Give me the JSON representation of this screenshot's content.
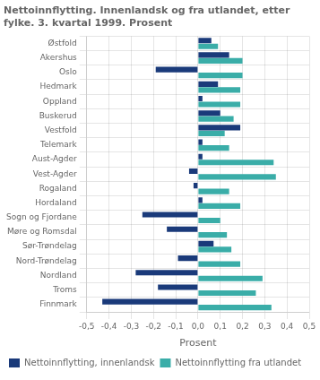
{
  "chart_data": {
    "type": "bar",
    "orientation": "horizontal",
    "title": "Nettoinnflytting. Innenlandsk og fra utlandet, etter\nfylke. 3. kvartal 1999. Prosent",
    "xlabel": "Prosent",
    "categories": [
      "Østfold",
      "Akershus",
      "Oslo",
      "Hedmark",
      "Oppland",
      "Buskerud",
      "Vestfold",
      "Telemark",
      "Aust-Agder",
      "Vest-Agder",
      "Rogaland",
      "Hordaland",
      "Sogn og Fjordane",
      "Møre og Romsdal",
      "Sør-Trøndelag",
      "Nord-Trøndelag",
      "Nordland",
      "Troms",
      "Finnmark"
    ],
    "series": [
      {
        "name": "Nettoinnflytting, innenlandsk",
        "color": "#1a3a7a",
        "values": [
          0.06,
          0.14,
          -0.19,
          0.09,
          0.02,
          0.1,
          0.19,
          0.02,
          0.02,
          -0.04,
          -0.02,
          0.02,
          -0.25,
          -0.14,
          0.07,
          -0.09,
          -0.28,
          -0.18,
          -0.43
        ]
      },
      {
        "name": "Nettoinnflytting fra utlandet",
        "color": "#3aada8",
        "values": [
          0.09,
          0.2,
          0.2,
          0.19,
          0.19,
          0.16,
          0.12,
          0.14,
          0.34,
          0.35,
          0.14,
          0.19,
          0.1,
          0.13,
          0.15,
          0.19,
          0.29,
          0.26,
          0.33
        ]
      }
    ],
    "xlim": [
      -0.5,
      0.5
    ],
    "xticks": [
      {
        "value": -0.5,
        "label": "-0,5"
      },
      {
        "value": -0.4,
        "label": "-0,4"
      },
      {
        "value": -0.3,
        "label": "-0,3"
      },
      {
        "value": -0.2,
        "label": "-0,2"
      },
      {
        "value": -0.1,
        "label": "-0,1"
      },
      {
        "value": 0.0,
        "label": "0,0"
      },
      {
        "value": 0.1,
        "label": "0,1"
      },
      {
        "value": 0.2,
        "label": "0,2"
      },
      {
        "value": 0.3,
        "label": "0,3"
      },
      {
        "value": 0.4,
        "label": "0,4"
      },
      {
        "value": 0.5,
        "label": "0,5"
      }
    ],
    "grid": true,
    "legend": "bottom"
  }
}
